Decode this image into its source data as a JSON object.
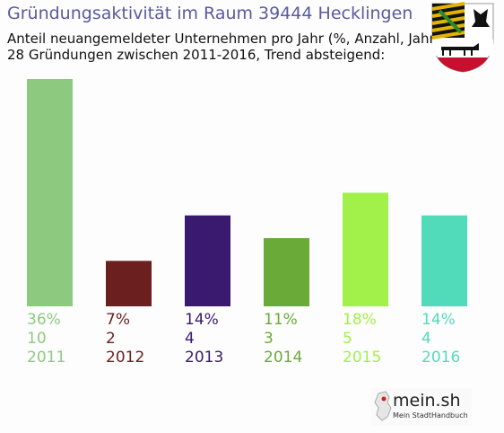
{
  "header": {
    "title": "Gründungsaktivität im Raum 39444 Hecklingen",
    "subtitle_line1": "Anteil neuangemeldeter Unternehmen pro Jahr (%, Anzahl, Jahr)",
    "subtitle_line2": "28 Gründungen zwischen 2011-2016, Trend absteigend:"
  },
  "crest": {
    "icon": "coat-of-arms-icon"
  },
  "logo": {
    "name": "mein.sh",
    "tagline": "Mein StadtHandbuch",
    "icon": "germany-map-icon"
  },
  "chart_data": {
    "type": "bar",
    "categories": [
      "2011",
      "2012",
      "2013",
      "2014",
      "2015",
      "2016"
    ],
    "values": [
      10,
      2,
      4,
      3,
      5,
      4
    ],
    "percentages": [
      "36%",
      "7%",
      "14%",
      "11%",
      "18%",
      "14%"
    ],
    "counts": [
      "10",
      "2",
      "4",
      "3",
      "5",
      "4"
    ],
    "colors": [
      "#8dca80",
      "#6b1f1f",
      "#3a1a6e",
      "#6aaa38",
      "#a2f04a",
      "#52dbbb"
    ],
    "ylim": [
      0,
      10
    ]
  }
}
